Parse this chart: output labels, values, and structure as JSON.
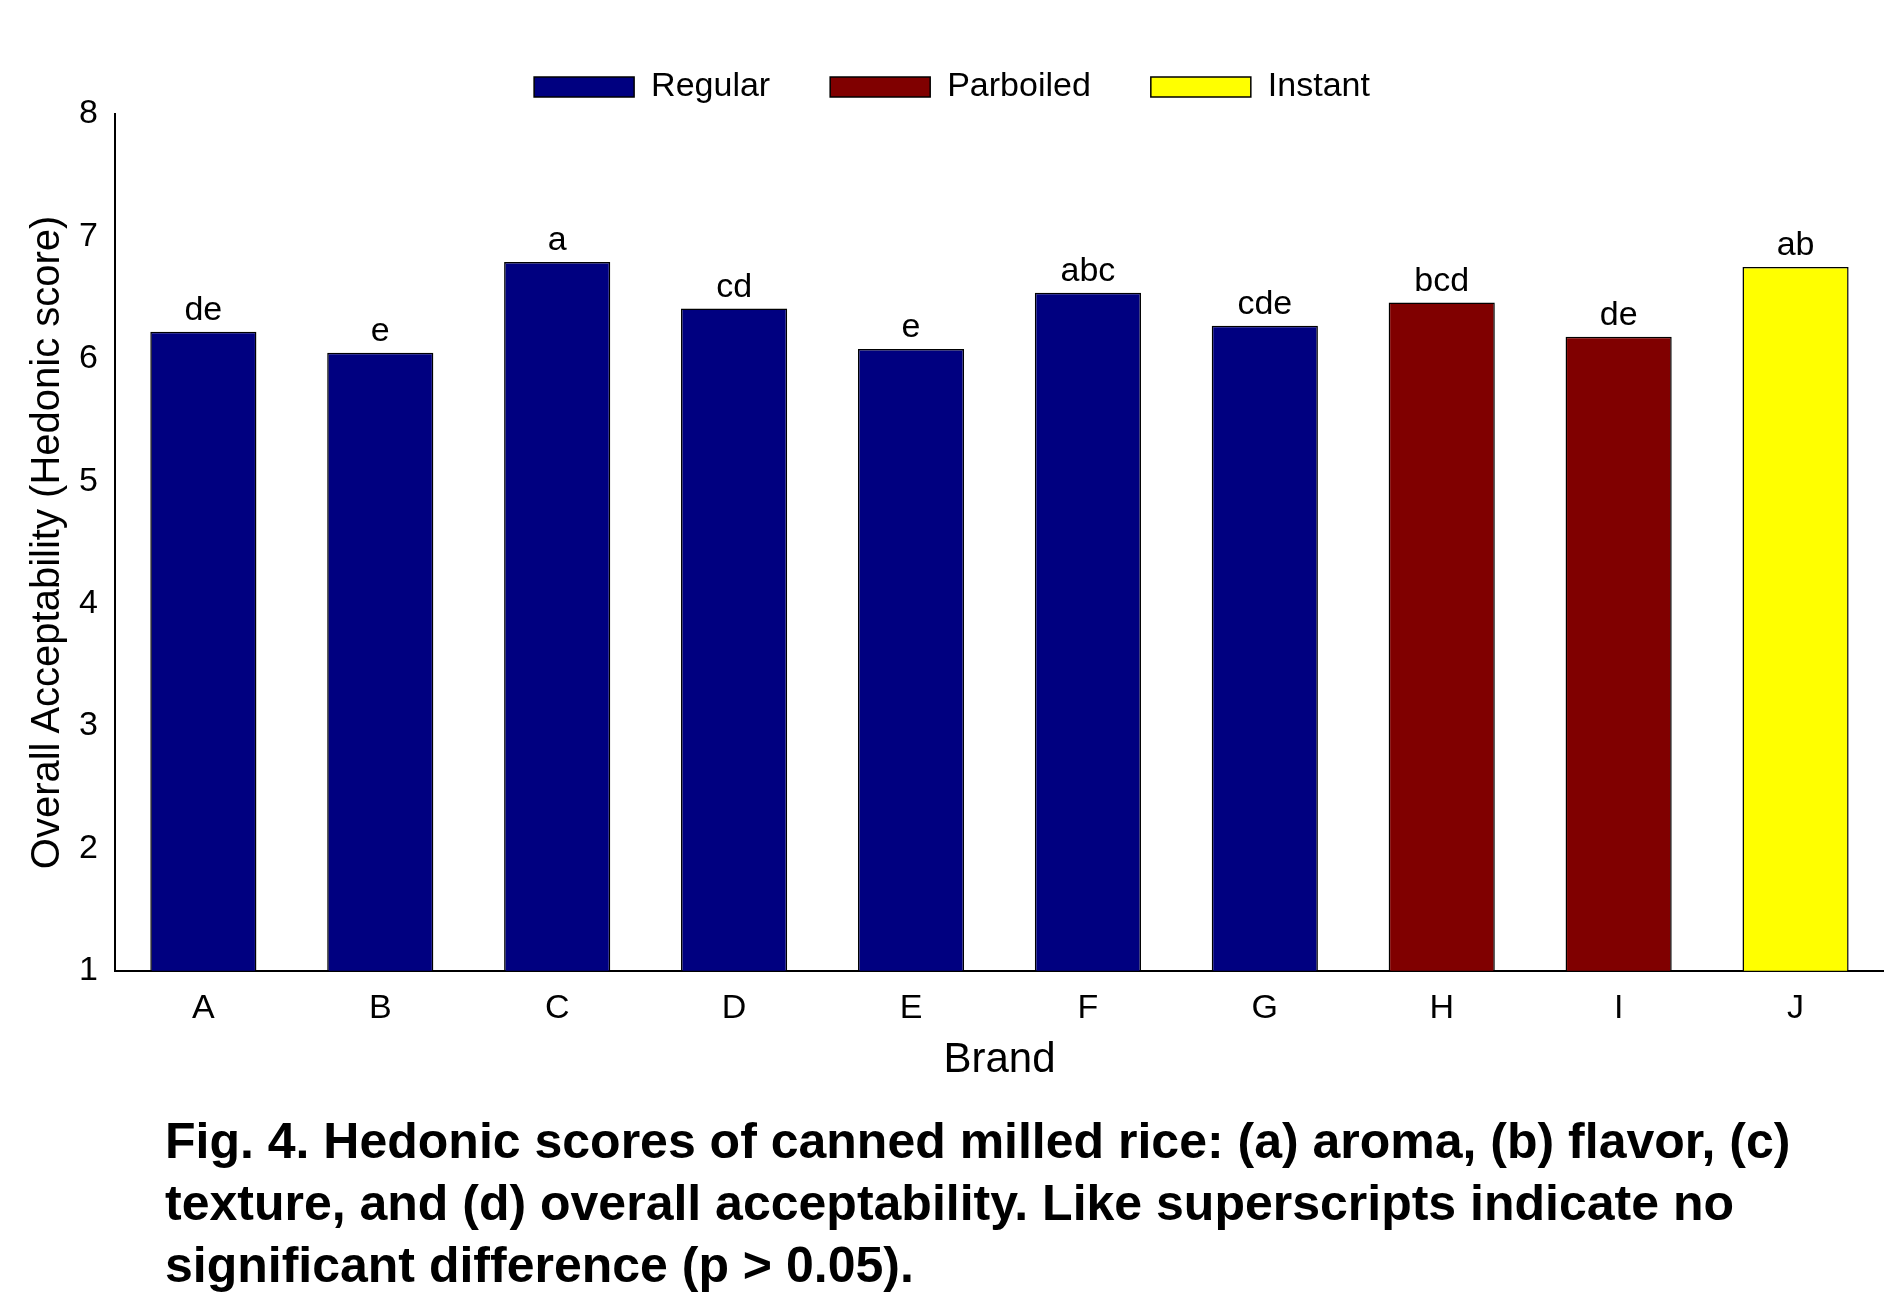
{
  "chart_data": {
    "type": "bar",
    "xlabel": "Brand",
    "ylabel": "Overall Acceptability (Hedonic score)",
    "categories": [
      "A",
      "B",
      "C",
      "D",
      "E",
      "F",
      "G",
      "H",
      "I",
      "J"
    ],
    "stacked": true,
    "series": [
      {
        "name": "Regular",
        "color": "#000080",
        "values": [
          6.22,
          6.05,
          6.79,
          6.41,
          6.08,
          6.54,
          6.27,
          null,
          null,
          null
        ]
      },
      {
        "name": "Parboiled",
        "color": "#800000",
        "values": [
          null,
          null,
          null,
          null,
          null,
          null,
          null,
          6.46,
          6.18,
          null
        ]
      },
      {
        "name": "Instant",
        "color": "#ffff00",
        "values": [
          null,
          null,
          null,
          null,
          null,
          null,
          null,
          null,
          null,
          6.75
        ]
      }
    ],
    "ylim": [
      1,
      8
    ],
    "yticks": [
      1,
      2,
      3,
      4,
      5,
      6,
      7,
      8
    ],
    "grid": false,
    "legend": "top",
    "annotations": [
      {
        "text": "de",
        "x": "A",
        "y": 6.22
      },
      {
        "text": "e",
        "x": "B",
        "y": 6.05
      },
      {
        "text": "a",
        "x": "C",
        "y": 6.79
      },
      {
        "text": "cd",
        "x": "D",
        "y": 6.41
      },
      {
        "text": "e",
        "x": "E",
        "y": 6.08
      },
      {
        "text": "abc",
        "x": "F",
        "y": 6.54
      },
      {
        "text": "cde",
        "x": "G",
        "y": 6.27
      },
      {
        "text": "bcd",
        "x": "H",
        "y": 6.46
      },
      {
        "text": "de",
        "x": "I",
        "y": 6.18
      },
      {
        "text": "ab",
        "x": "J",
        "y": 6.75
      },
      "Fig. 4.  Hedonic scores of canned milled rice: (a) aroma, (b) flavor, (c) texture, and (d) overall acceptability. Like superscripts indicate no significant difference (p > 0.05)."
    ]
  }
}
